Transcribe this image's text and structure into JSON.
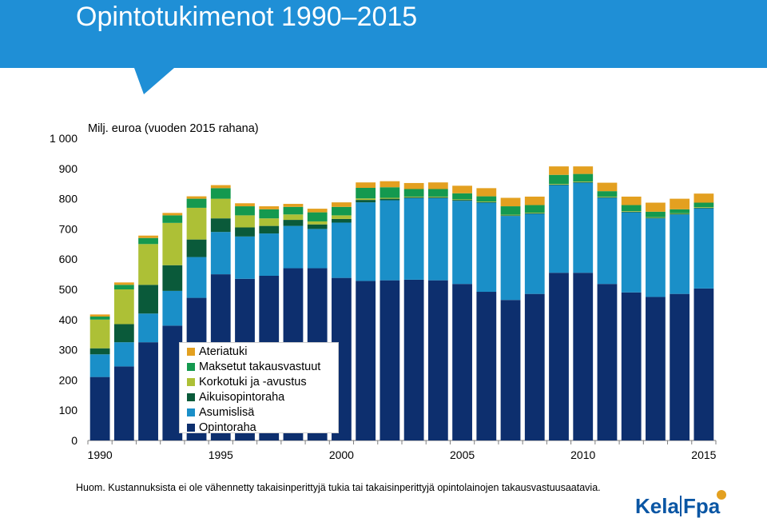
{
  "title": "Opintotukimenot 1990–2015",
  "colors": {
    "banner": "#1f8fd6",
    "Opintoraha": "#0d2f6e",
    "Asumislisä": "#1a8fc8",
    "Aikuisopintoraha": "#0a5a3a",
    "Korkotuki ja -avustus": "#adc036",
    "Maksetut takausvastuut": "#14994f",
    "Ateriatuki": "#e3a020"
  },
  "chart_data": {
    "type": "bar",
    "stacked": true,
    "title": "Milj. euroa (vuoden 2015 rahana)",
    "xlabel": "",
    "ylabel": "Milj. euroa (vuoden 2015 rahana)",
    "ylim": [
      0,
      1000
    ],
    "yticks": [
      "0",
      "100",
      "200",
      "300",
      "400",
      "500",
      "600",
      "700",
      "800",
      "900",
      "1 000"
    ],
    "xtick_labels": [
      "1990",
      "1995",
      "2000",
      "2005",
      "2010",
      "2015"
    ],
    "categories": [
      1990,
      1991,
      1992,
      1993,
      1994,
      1995,
      1996,
      1997,
      1998,
      1999,
      2000,
      2001,
      2002,
      2003,
      2004,
      2005,
      2006,
      2007,
      2008,
      2009,
      2010,
      2011,
      2012,
      2013,
      2014,
      2015
    ],
    "series": [
      {
        "name": "Opintoraha",
        "values": [
          210,
          245,
          325,
          380,
          472,
          550,
          535,
          545,
          570,
          570,
          538,
          528,
          530,
          532,
          530,
          518,
          492,
          465,
          485,
          555,
          555,
          518,
          490,
          475,
          485,
          503
        ]
      },
      {
        "name": "Asumislisä",
        "values": [
          75,
          80,
          95,
          115,
          135,
          140,
          140,
          140,
          140,
          130,
          183,
          260,
          265,
          270,
          272,
          275,
          295,
          278,
          265,
          290,
          298,
          285,
          265,
          260,
          263,
          265
        ]
      },
      {
        "name": "Aikuisopintoraha",
        "values": [
          20,
          60,
          95,
          85,
          58,
          45,
          30,
          25,
          20,
          15,
          12,
          8,
          5,
          3,
          3,
          3,
          2,
          2,
          2,
          2,
          2,
          2,
          2,
          2,
          2,
          2
        ]
      },
      {
        "name": "Korkotuki ja -avustus",
        "values": [
          95,
          115,
          135,
          140,
          105,
          65,
          40,
          25,
          18,
          10,
          12,
          5,
          3,
          2,
          2,
          2,
          2,
          2,
          2,
          2,
          2,
          2,
          2,
          2,
          2,
          2
        ]
      },
      {
        "name": "Maksetut takausvastuut",
        "values": [
          10,
          15,
          20,
          25,
          30,
          35,
          30,
          30,
          25,
          30,
          28,
          35,
          35,
          25,
          25,
          20,
          17,
          28,
          25,
          30,
          25,
          18,
          20,
          18,
          13,
          15
        ]
      },
      {
        "name": "Ateriatuki",
        "values": [
          7,
          8,
          8,
          8,
          8,
          10,
          10,
          10,
          10,
          12,
          15,
          18,
          20,
          20,
          22,
          25,
          27,
          28,
          28,
          28,
          25,
          28,
          28,
          30,
          35,
          30
        ]
      }
    ]
  },
  "footnote": "Huom. Kustannuksista ei ole vähennetty takaisinperittyjä tukia tai takaisinperittyjä opintolainojen takausvastuusaatavia.",
  "logo": {
    "left": "Kela",
    "right": "Fpa"
  }
}
